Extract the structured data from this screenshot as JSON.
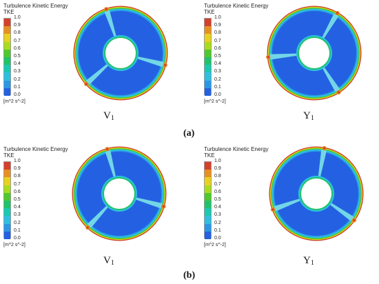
{
  "legend": {
    "title": "Turbulence Kinetic Energy",
    "subtitle": "TKE",
    "unit": "[m^2 s^-2]",
    "ticks": [
      "1.0",
      "0.9",
      "0.8",
      "0.7",
      "0.6",
      "0.5",
      "0.4",
      "0.3",
      "0.2",
      "0.1",
      "0.0"
    ],
    "colors": [
      "#d6402b",
      "#e8901f",
      "#e9d21e",
      "#a9dd1c",
      "#4ec92b",
      "#1fc46a",
      "#19c9b2",
      "#2ec0e0",
      "#2a97e6",
      "#2461e2"
    ]
  },
  "panels": [
    {
      "caption": "V",
      "caption_sub": "1"
    },
    {
      "caption": "Y",
      "caption_sub": "1"
    },
    {
      "caption": "V",
      "caption_sub": "1"
    },
    {
      "caption": "Y",
      "caption_sub": "1"
    }
  ],
  "subfigures": {
    "a": "(a)",
    "b": "(b)"
  }
}
